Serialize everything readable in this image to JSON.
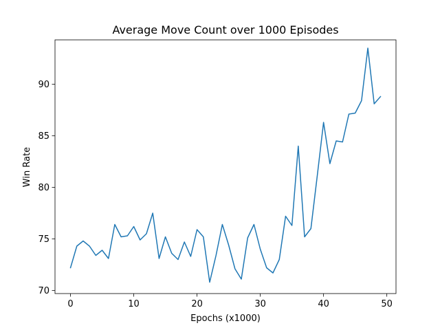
{
  "chart_data": {
    "type": "line",
    "title": "Average Move Count over 1000 Episodes",
    "xlabel": "Epochs (x1000)",
    "ylabel": "Win Rate",
    "xlim": [
      -2.45,
      51.45
    ],
    "ylim": [
      69.7,
      94.3
    ],
    "xticks": [
      0,
      10,
      20,
      30,
      40,
      50
    ],
    "yticks": [
      70,
      75,
      80,
      85,
      90
    ],
    "grid": false,
    "line_color": "#1f77b4",
    "x": [
      0,
      1,
      2,
      3,
      4,
      5,
      6,
      7,
      8,
      9,
      10,
      11,
      12,
      13,
      14,
      15,
      16,
      17,
      18,
      19,
      20,
      21,
      22,
      23,
      24,
      25,
      26,
      27,
      28,
      29,
      30,
      31,
      32,
      33,
      34,
      35,
      36,
      37,
      38,
      39,
      40,
      41,
      42,
      43,
      44,
      45,
      46,
      47,
      48,
      49
    ],
    "series": [
      {
        "values": [
          72.2,
          74.3,
          74.8,
          74.3,
          73.4,
          73.9,
          73.1,
          76.4,
          75.2,
          75.3,
          76.2,
          74.9,
          75.5,
          77.5,
          73.1,
          75.2,
          73.6,
          73.0,
          74.7,
          73.3,
          75.9,
          75.2,
          70.8,
          73.4,
          76.4,
          74.4,
          72.1,
          71.1,
          75.1,
          76.4,
          74.0,
          72.2,
          71.7,
          73.0,
          77.2,
          76.3,
          84.0,
          75.2,
          76.0,
          81.1,
          86.3,
          82.3,
          84.5,
          84.4,
          87.1,
          87.2,
          88.4,
          93.5,
          88.1,
          88.8
        ]
      }
    ]
  }
}
